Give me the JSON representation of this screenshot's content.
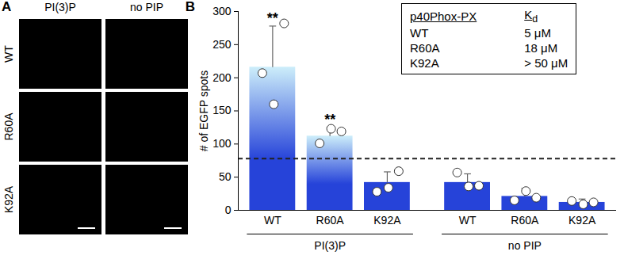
{
  "panel_a": {
    "letter": "A",
    "column_labels": [
      "PI(3)P",
      "no PIP"
    ],
    "row_labels": [
      "WT",
      "R60A",
      "K92A"
    ]
  },
  "chart_data": {
    "type": "bar",
    "letter": "B",
    "y_label": "# of EGFP spots",
    "categories": [
      "WT",
      "R60A",
      "K92A",
      "WT",
      "R60A",
      "K92A"
    ],
    "groups": [
      "PI(3)P",
      "PI(3)P",
      "PI(3)P",
      "no PIP",
      "no PIP",
      "no PIP"
    ],
    "values": [
      216,
      112,
      42,
      42,
      21,
      12
    ],
    "errors": [
      62,
      13,
      16,
      13,
      12,
      5
    ],
    "points": [
      [
        207,
        160,
        282
      ],
      [
        101,
        123,
        119
      ],
      [
        28,
        34,
        59
      ],
      [
        57,
        36,
        37
      ],
      [
        15,
        29,
        19
      ],
      [
        14,
        9,
        12
      ]
    ],
    "colors": [
      "#cdeefa",
      "#cdeefa",
      "#2643d9",
      "#2643d9",
      "#2643d9",
      "#2643d9"
    ],
    "ylim": [
      0,
      300
    ],
    "yticks": [
      0,
      50,
      100,
      150,
      200,
      250,
      300
    ],
    "reference_line": 78,
    "significance": [
      "**",
      "**",
      null,
      null,
      null,
      null
    ],
    "inset_table": {
      "columns": [
        {
          "text": "p40Phox-PX"
        },
        {
          "text": "K",
          "subscript": "d"
        }
      ],
      "rows": [
        [
          "WT",
          "5 μM"
        ],
        [
          "R60A",
          "18 μM"
        ],
        [
          "K92A",
          "> 50 μM"
        ]
      ]
    }
  }
}
